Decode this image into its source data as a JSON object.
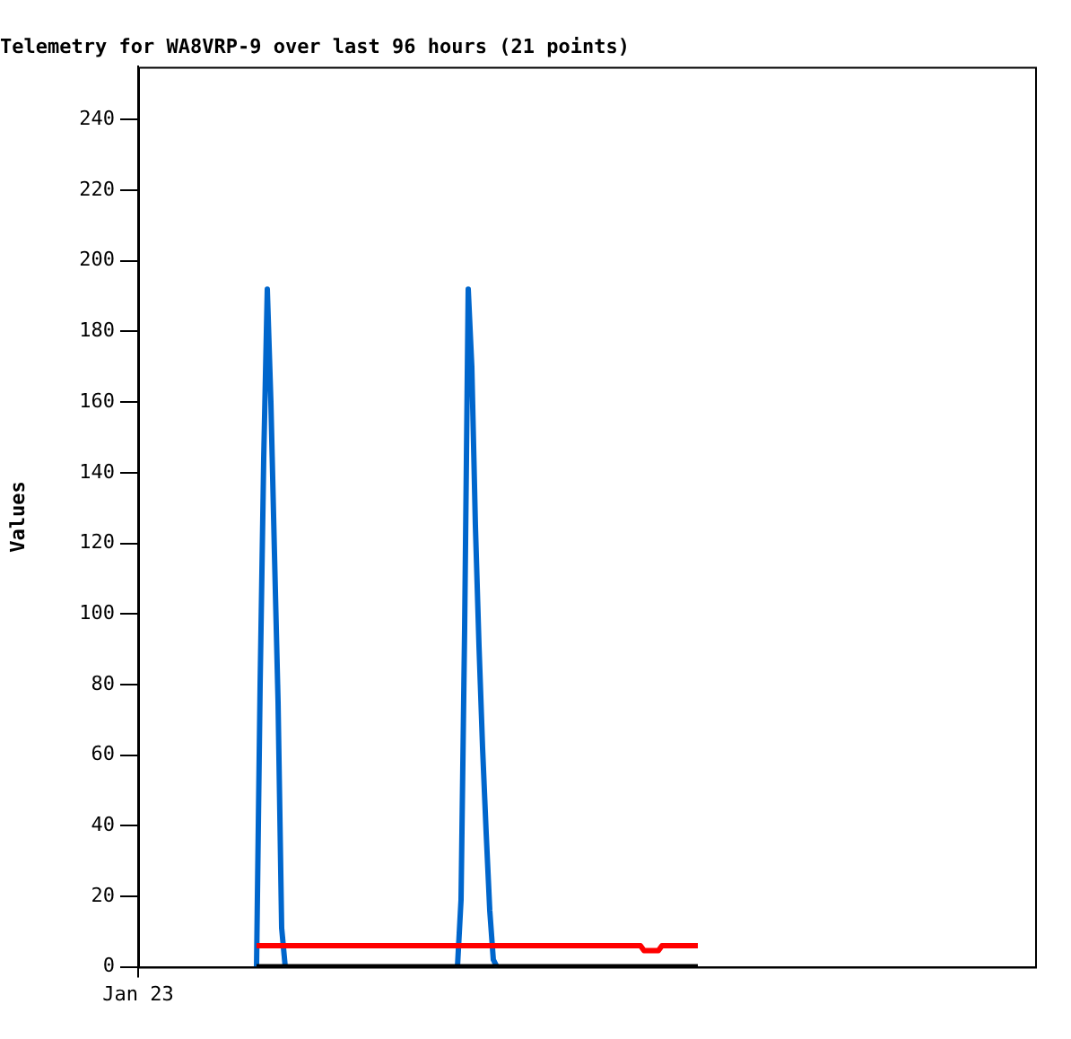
{
  "chart_data": {
    "type": "line",
    "title": "Telemetry for WA8VRP-9 over last 96 hours (21 points)",
    "ylabel": "Values",
    "categories": [
      "Jan 23",
      null,
      null,
      null,
      null,
      null,
      null,
      null,
      null,
      null,
      null,
      null,
      null,
      null,
      null,
      null,
      null,
      null,
      null,
      null,
      null,
      null,
      null,
      null,
      null,
      null,
      null,
      null,
      null,
      null,
      null,
      null,
      null,
      null,
      null,
      null,
      null,
      null,
      null,
      null,
      null,
      null,
      null,
      null,
      null,
      null,
      null,
      null,
      null,
      null,
      null,
      null,
      null,
      null,
      null,
      null,
      null,
      null,
      null,
      null,
      null,
      null,
      null,
      null,
      null,
      null,
      null,
      null,
      null,
      null,
      null,
      null,
      null,
      null,
      null,
      null,
      null,
      null,
      null,
      null,
      null,
      null,
      null,
      null,
      null,
      null,
      null,
      null,
      null,
      null,
      null,
      null,
      null,
      null,
      null,
      null,
      null,
      null,
      null,
      null,
      null,
      null,
      null,
      null,
      null,
      null,
      null,
      null,
      null,
      null,
      null,
      null,
      null,
      null,
      null,
      null,
      null,
      null,
      null,
      null,
      null,
      null,
      null,
      null,
      null,
      null,
      null,
      null,
      null,
      null,
      null,
      null,
      null,
      null,
      null,
      null,
      null,
      null,
      null,
      null,
      null,
      null,
      null,
      null,
      null,
      null,
      null,
      null,
      null,
      null,
      null,
      null,
      null,
      null,
      null,
      null,
      null,
      null,
      null,
      null,
      null,
      null,
      null,
      null,
      null,
      null,
      null,
      null,
      null,
      null,
      null,
      null,
      null,
      null,
      null,
      null,
      null,
      null,
      null,
      null,
      null,
      null,
      null,
      null,
      null,
      null,
      null,
      null,
      null,
      null,
      null,
      null,
      null,
      null,
      null,
      null,
      null,
      null,
      null,
      null,
      null,
      null,
      null,
      null,
      null,
      null,
      null,
      null,
      null,
      null,
      null,
      null,
      null,
      null,
      null,
      null,
      null,
      null,
      null,
      null,
      null,
      null,
      null,
      null,
      null,
      null,
      null,
      null,
      null,
      null,
      null,
      null,
      null,
      null,
      null,
      null,
      null,
      null,
      null,
      null,
      null,
      null,
      null,
      null,
      null,
      null,
      null,
      null,
      null,
      null,
      null
    ],
    "ylim": [
      0,
      255
    ],
    "yticks": [
      0,
      20,
      40,
      60,
      80,
      100,
      120,
      140,
      160,
      180,
      200,
      220,
      240
    ],
    "grid": false,
    "legend": false,
    "marker": "none",
    "line_style": "solid",
    "series": [
      {
        "color": "#000000",
        "values": [
          null,
          null,
          null,
          null,
          null,
          null,
          null,
          null,
          null,
          null,
          null,
          null,
          null,
          null,
          null,
          null,
          null,
          null,
          null,
          null,
          null,
          null,
          null,
          null,
          null,
          null,
          null,
          null,
          null,
          null,
          null,
          null,
          null,
          0,
          0,
          0,
          0,
          0,
          0,
          0,
          0,
          0,
          0,
          0,
          0,
          0,
          0,
          0,
          0,
          0,
          0,
          0,
          0,
          0,
          0,
          0,
          0,
          0,
          0,
          0,
          0,
          0,
          0,
          0,
          0,
          0,
          0,
          0,
          0,
          0,
          0,
          0,
          0,
          0,
          0,
          0,
          0,
          0,
          0,
          0,
          0,
          0,
          0,
          0,
          0,
          0,
          0,
          0,
          0,
          0,
          0,
          0,
          0,
          0,
          0,
          0,
          0,
          0,
          0,
          0,
          0,
          0,
          0,
          0,
          0,
          0,
          0,
          0,
          0,
          0,
          0,
          0,
          0,
          0,
          0,
          0,
          0,
          0,
          0,
          0,
          0,
          0,
          0,
          0,
          0,
          0,
          0,
          0,
          0,
          0,
          0,
          0,
          0,
          0,
          0,
          0,
          0,
          0,
          0,
          0,
          0,
          0,
          0,
          0,
          0,
          0,
          0,
          0,
          0,
          0,
          0,
          0,
          0,
          0,
          0,
          0,
          0,
          null,
          null,
          null,
          null,
          null,
          null,
          null,
          null,
          null,
          null,
          null,
          null,
          null,
          null,
          null,
          null,
          null,
          null,
          null,
          null,
          null,
          null,
          null,
          null,
          null,
          null,
          null,
          null,
          null,
          null,
          null,
          null,
          null,
          null,
          null,
          null,
          null,
          null,
          null,
          null,
          null,
          null,
          null,
          null,
          null,
          null,
          null,
          null,
          null,
          null,
          null,
          null,
          null,
          null,
          null,
          null,
          null,
          null,
          null,
          null,
          null,
          null,
          null,
          null,
          null,
          null,
          null,
          null,
          null,
          null,
          null,
          null,
          null,
          null,
          null,
          null,
          null,
          null,
          null,
          null,
          null,
          null,
          null,
          null,
          null,
          null,
          null,
          null,
          null,
          null,
          null,
          null,
          null,
          null
        ]
      },
      {
        "color": "#ff0000",
        "values": [
          null,
          null,
          null,
          null,
          null,
          null,
          null,
          null,
          null,
          null,
          null,
          null,
          null,
          null,
          null,
          null,
          null,
          null,
          null,
          null,
          null,
          null,
          null,
          null,
          null,
          null,
          null,
          null,
          null,
          null,
          null,
          null,
          null,
          6,
          6,
          6,
          6,
          6,
          6,
          6,
          6,
          6,
          6,
          6,
          6,
          6,
          6,
          6,
          6,
          6,
          6,
          6,
          6,
          6,
          6,
          6,
          6,
          6,
          6,
          6,
          6,
          6,
          6,
          6,
          6,
          6,
          6,
          6,
          6,
          6,
          6,
          6,
          6,
          6,
          6,
          6,
          6,
          6,
          6,
          6,
          6,
          6,
          6,
          6,
          6,
          6,
          6,
          6,
          6,
          6,
          6,
          6,
          6,
          6,
          6,
          6,
          6,
          6,
          6,
          6,
          6,
          6,
          6,
          6,
          6,
          6,
          6,
          6,
          6,
          6,
          6,
          6,
          6,
          6,
          6,
          6,
          6,
          6,
          6,
          6,
          6,
          6,
          6,
          6,
          6,
          6,
          6,
          6,
          6,
          6,
          6,
          6,
          6,
          6,
          6,
          6,
          6,
          6,
          6,
          6,
          6,
          4.6,
          4.6,
          4.6,
          4.6,
          4.6,
          6,
          6,
          6,
          6,
          6,
          6,
          6,
          6,
          6,
          6,
          6,
          null,
          null,
          null,
          null,
          null,
          null,
          null,
          null,
          null,
          null,
          null,
          null,
          null,
          null,
          null,
          null,
          null,
          null,
          null,
          null,
          null,
          null,
          null,
          null,
          null,
          null,
          null,
          null,
          null,
          null,
          null,
          null,
          null,
          null,
          null,
          null,
          null,
          null,
          null,
          null,
          null,
          null,
          null,
          null,
          null,
          null,
          null,
          null,
          null,
          null,
          null,
          null,
          null,
          null,
          null,
          null,
          null,
          null,
          null,
          null,
          null,
          null,
          null,
          null,
          null,
          null,
          null,
          null,
          null,
          null,
          null,
          null,
          null,
          null,
          null,
          null,
          null,
          null,
          null,
          null,
          null,
          null,
          null,
          null,
          null,
          null,
          null,
          null,
          null,
          null,
          null,
          null,
          null,
          null
        ]
      },
      {
        "color": "#0066cc",
        "values": [
          null,
          null,
          null,
          null,
          null,
          null,
          null,
          null,
          null,
          null,
          null,
          null,
          null,
          null,
          null,
          null,
          null,
          null,
          null,
          null,
          null,
          null,
          null,
          null,
          null,
          null,
          null,
          null,
          null,
          null,
          null,
          null,
          null,
          0,
          80,
          144,
          192,
          160,
          117,
          75,
          11,
          0,
          null,
          null,
          null,
          null,
          null,
          null,
          null,
          null,
          null,
          null,
          null,
          null,
          null,
          null,
          null,
          null,
          null,
          null,
          null,
          null,
          null,
          null,
          null,
          null,
          null,
          null,
          null,
          null,
          null,
          null,
          null,
          null,
          null,
          null,
          null,
          null,
          null,
          null,
          null,
          null,
          null,
          null,
          null,
          null,
          null,
          null,
          null,
          0,
          19,
          96,
          192,
          170,
          125,
          91,
          62,
          38,
          16,
          2,
          0,
          null,
          null,
          null,
          null,
          null,
          null,
          null,
          null,
          null,
          null,
          null,
          null,
          null,
          null,
          null,
          null,
          null,
          null,
          null,
          null,
          null,
          null,
          null,
          null,
          null,
          null,
          null,
          null,
          null,
          null,
          null,
          null,
          null,
          null,
          null,
          null,
          null,
          null,
          null,
          null,
          null,
          null,
          null,
          null,
          null,
          null,
          null,
          null,
          null,
          null,
          null,
          null,
          null,
          null,
          null,
          null,
          null,
          null,
          null,
          null,
          null,
          null,
          null,
          null,
          null,
          null,
          null,
          null,
          null,
          null,
          null,
          null,
          null,
          null,
          null,
          null,
          null,
          null,
          null,
          null,
          null,
          null,
          null,
          null,
          null,
          null,
          null,
          null,
          null,
          null,
          null,
          null,
          null,
          null,
          null,
          null,
          null,
          null,
          null,
          null,
          null,
          null,
          null,
          null,
          null,
          null,
          null,
          null,
          null,
          null,
          null,
          null,
          null,
          null,
          null,
          null,
          null,
          null,
          null,
          null,
          null,
          null,
          null,
          null,
          null,
          null,
          null,
          null,
          null,
          null,
          null,
          null,
          null,
          null,
          null,
          null,
          null,
          null,
          null,
          null,
          null,
          null,
          null,
          null,
          null,
          null,
          null,
          null,
          null,
          null
        ]
      }
    ]
  }
}
